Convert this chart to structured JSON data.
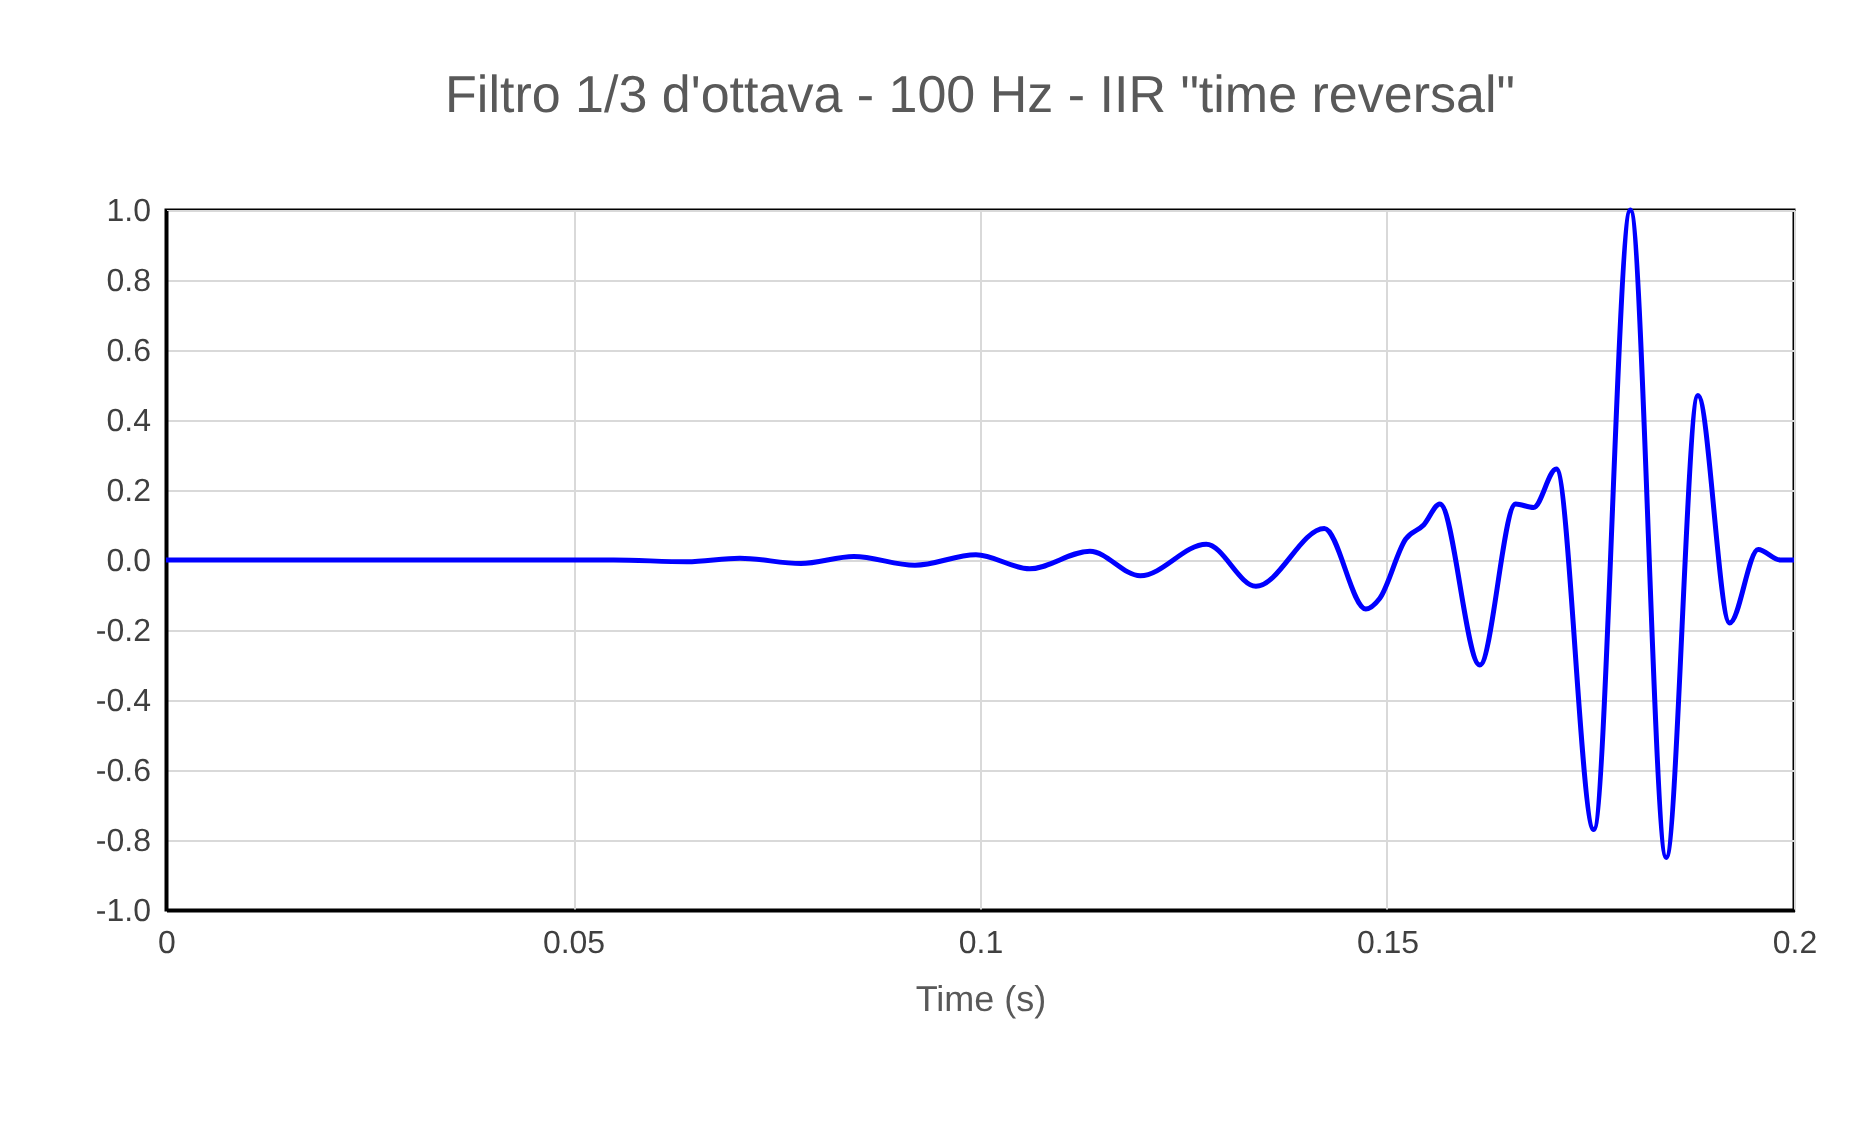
{
  "chart_data": {
    "type": "line",
    "title": "Filtro 1/3 d'ottava - 100 Hz - IIR \"time reversal\"",
    "xlabel": "Time (s)",
    "x": [
      0,
      0.02,
      0.04,
      0.055,
      0.064,
      0.0705,
      0.078,
      0.0845,
      0.092,
      0.0995,
      0.1061,
      0.1135,
      0.1197,
      0.1278,
      0.1339,
      0.1423,
      0.1474,
      0.1491,
      0.1523,
      0.1545,
      0.1565,
      0.1614,
      0.1658,
      0.168,
      0.1708,
      0.1754,
      0.1799,
      0.1843,
      0.1882,
      0.1921,
      0.1956,
      0.1983,
      0.2
    ],
    "series": [
      {
        "color": "#0000ff",
        "values": [
          0,
          0,
          0,
          0,
          -0.005,
          0.005,
          -0.01,
          0.01,
          -0.015,
          0.015,
          -0.025,
          0.025,
          -0.045,
          0.045,
          -0.075,
          0.09,
          -0.14,
          -0.11,
          0.06,
          0.1,
          0.16,
          -0.3,
          0.16,
          0.15,
          0.26,
          -0.77,
          1.0,
          -0.85,
          0.47,
          -0.18,
          0.03,
          0,
          0
        ]
      }
    ],
    "xlim": [
      0,
      0.2
    ],
    "xticks": [
      0,
      0.05,
      0.1,
      0.15,
      0.2
    ],
    "ylim": [
      -1,
      1
    ],
    "yticks": [
      {
        "value": -1,
        "label": "-1.0"
      },
      {
        "value": -0.8,
        "label": "-0.8"
      },
      {
        "value": -0.6,
        "label": "-0.6"
      },
      {
        "value": -0.4,
        "label": "-0.4"
      },
      {
        "value": -0.2,
        "label": "-0.2"
      },
      {
        "value": 0,
        "label": "0.0"
      },
      {
        "value": 0.2,
        "label": "0.2"
      },
      {
        "value": 0.4,
        "label": "0.4"
      },
      {
        "value": 0.6,
        "label": "0.6"
      },
      {
        "value": 0.8,
        "label": "0.8"
      },
      {
        "value": 1,
        "label": "1.0"
      }
    ],
    "grid": true,
    "marker": "none",
    "line_style": "solid"
  }
}
